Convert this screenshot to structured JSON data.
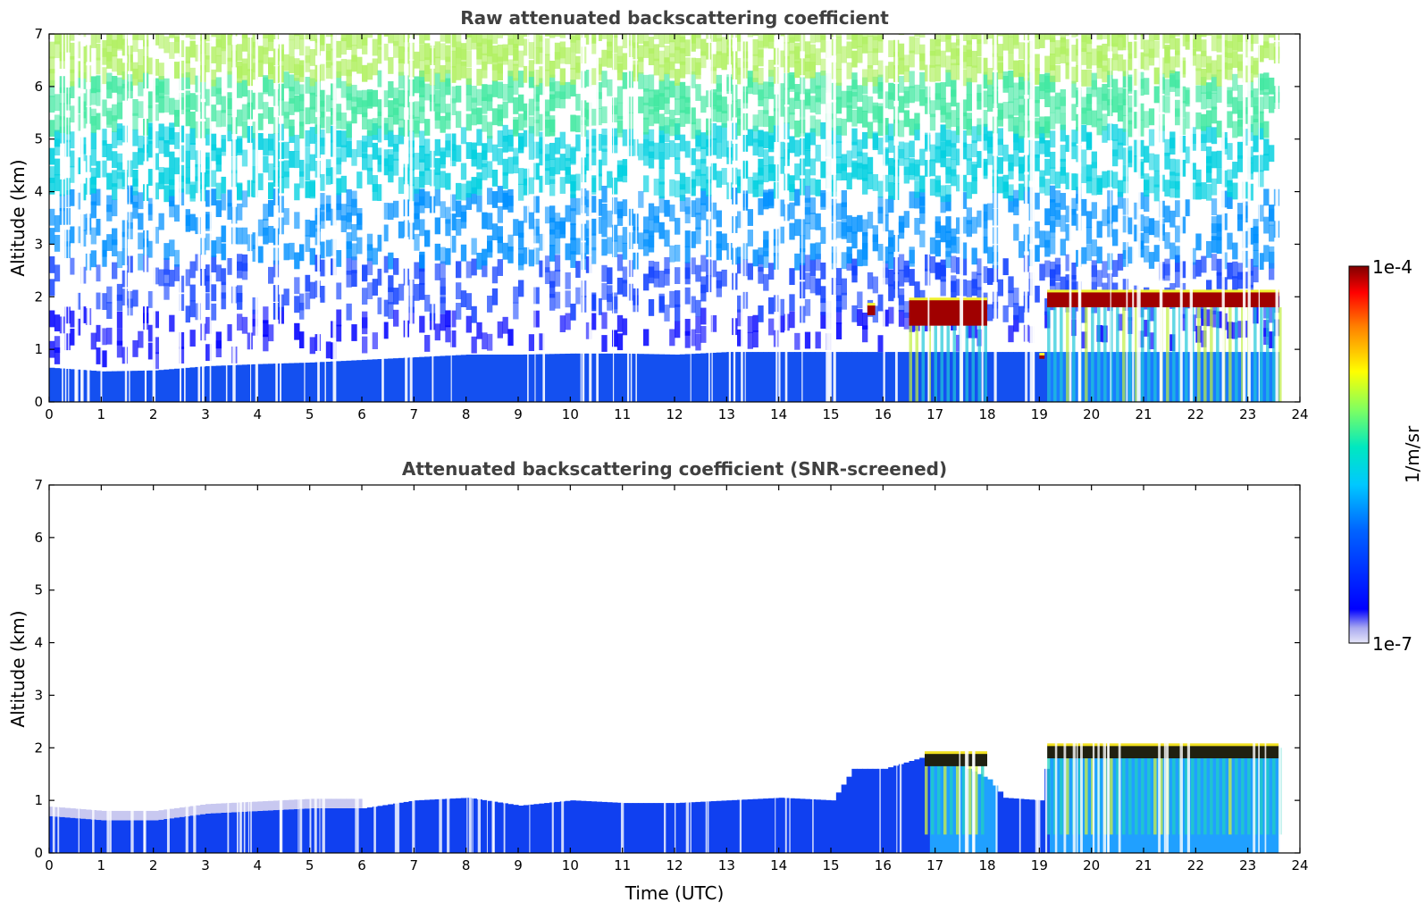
{
  "chart_data": [
    {
      "type": "heatmap",
      "title": "Raw attenuated backscattering coefficient",
      "xlabel": "",
      "ylabel": "Altitude (km)",
      "xlim": [
        0,
        24
      ],
      "ylim": [
        0,
        7
      ],
      "xticks": [
        "0",
        "1",
        "2",
        "3",
        "4",
        "5",
        "6",
        "7",
        "8",
        "9",
        "10",
        "11",
        "12",
        "13",
        "14",
        "15",
        "16",
        "17",
        "18",
        "19",
        "20",
        "21",
        "22",
        "23",
        "24"
      ],
      "yticks": [
        "0",
        "1",
        "2",
        "3",
        "4",
        "5",
        "6",
        "7"
      ],
      "data_end_time": 23.6,
      "boundary_layer_top_km": [
        [
          0,
          0.65
        ],
        [
          1,
          0.58
        ],
        [
          2,
          0.6
        ],
        [
          3,
          0.68
        ],
        [
          4,
          0.72
        ],
        [
          5,
          0.75
        ],
        [
          6,
          0.8
        ],
        [
          7,
          0.85
        ],
        [
          8,
          0.9
        ],
        [
          9,
          0.9
        ],
        [
          10,
          0.92
        ],
        [
          11,
          0.92
        ],
        [
          12,
          0.9
        ],
        [
          13,
          0.95
        ],
        [
          14,
          0.95
        ],
        [
          15,
          0.95
        ],
        [
          16,
          0.95
        ],
        [
          17,
          0.95
        ],
        [
          18,
          0.95
        ],
        [
          19,
          0.95
        ],
        [
          20,
          0.95
        ],
        [
          21,
          0.95
        ],
        [
          22,
          0.95
        ],
        [
          23,
          0.95
        ],
        [
          23.6,
          0.95
        ]
      ],
      "cloud_segments": [
        {
          "start": 15.7,
          "end": 15.85,
          "base_km": 1.65,
          "top_km": 1.85
        },
        {
          "start": 16.5,
          "end": 18.0,
          "base_km": 1.45,
          "top_km": 1.95
        },
        {
          "start": 19.0,
          "end": 19.1,
          "base_km": 0.82,
          "top_km": 0.9
        },
        {
          "start": 19.15,
          "end": 23.6,
          "base_km": 1.8,
          "top_km": 2.1
        }
      ]
    },
    {
      "type": "heatmap",
      "title": "Attenuated backscattering coefficient (SNR-screened)",
      "xlabel": "Time (UTC)",
      "ylabel": "Altitude (km)",
      "xlim": [
        0,
        24
      ],
      "ylim": [
        0,
        7
      ],
      "xticks": [
        "0",
        "1",
        "2",
        "3",
        "4",
        "5",
        "6",
        "7",
        "8",
        "9",
        "10",
        "11",
        "12",
        "13",
        "14",
        "15",
        "16",
        "17",
        "18",
        "19",
        "20",
        "21",
        "22",
        "23",
        "24"
      ],
      "yticks": [
        "0",
        "1",
        "2",
        "3",
        "4",
        "5",
        "6",
        "7"
      ],
      "data_end_time": 23.6,
      "signal_top_km": [
        [
          0,
          0.7
        ],
        [
          1,
          0.62
        ],
        [
          2,
          0.62
        ],
        [
          3,
          0.75
        ],
        [
          4,
          0.8
        ],
        [
          5,
          0.85
        ],
        [
          6,
          0.85
        ],
        [
          7,
          1.0
        ],
        [
          8,
          1.05
        ],
        [
          9,
          0.9
        ],
        [
          10,
          1.0
        ],
        [
          11,
          0.95
        ],
        [
          12,
          0.95
        ],
        [
          13,
          1.0
        ],
        [
          14,
          1.05
        ],
        [
          15,
          1.0
        ],
        [
          15.4,
          1.6
        ],
        [
          16,
          1.6
        ],
        [
          17,
          1.9
        ],
        [
          18,
          1.4
        ],
        [
          18.3,
          1.05
        ],
        [
          19,
          1.0
        ],
        [
          19.15,
          1.9
        ],
        [
          23.6,
          2.05
        ]
      ]
    }
  ],
  "colorbar": {
    "label": "1/m/sr",
    "max_label": "1e-4",
    "min_label": "1e-7",
    "colormap": "jet",
    "scale": "log",
    "range": [
      1e-07,
      0.0001
    ]
  }
}
